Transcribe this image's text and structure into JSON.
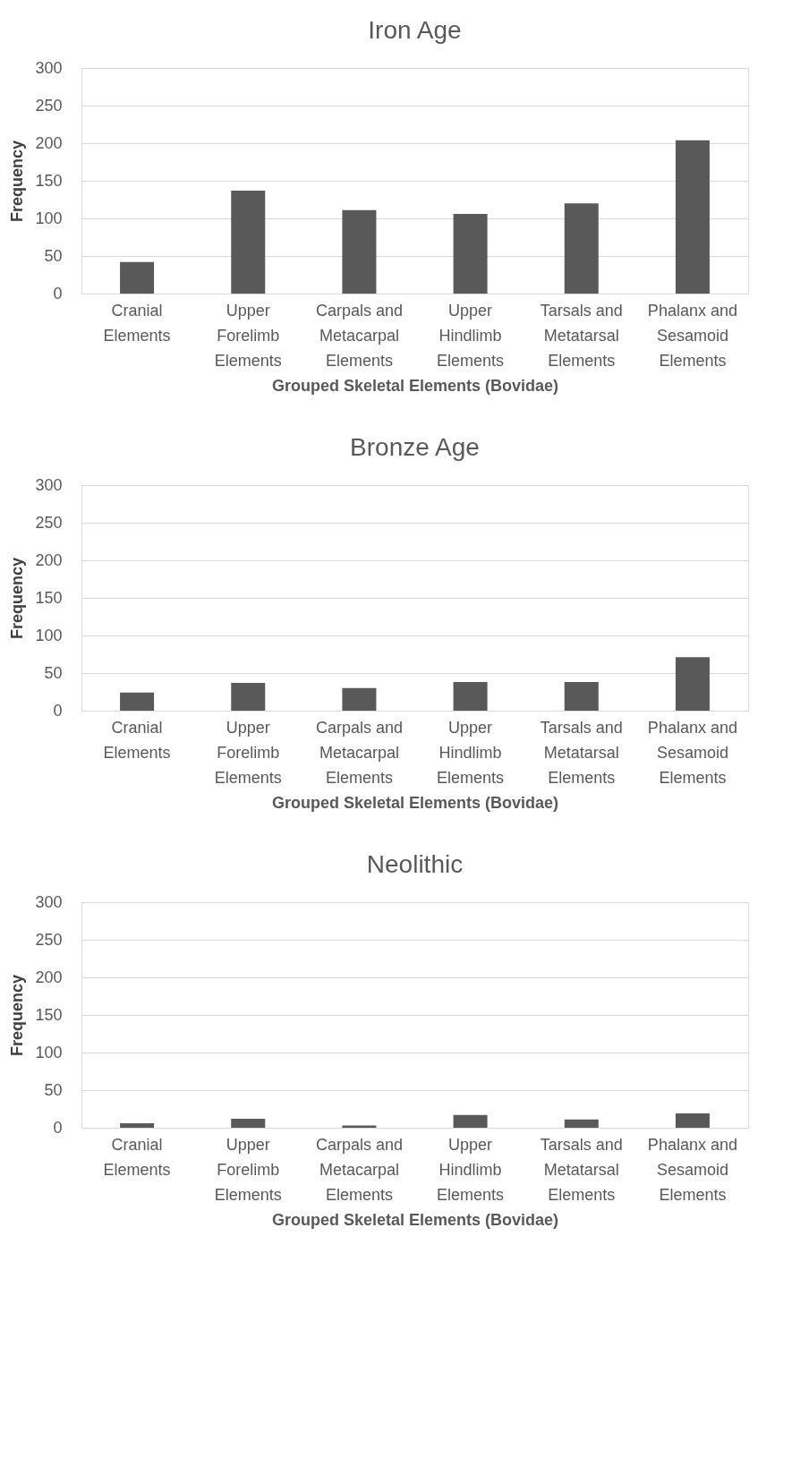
{
  "chart_data": [
    {
      "type": "bar",
      "title": "Iron Age",
      "xlabel": "Grouped Skeletal Elements (Bovidae)",
      "ylabel": "Frequency",
      "categories": [
        "Cranial Elements",
        "Upper Forelimb Elements",
        "Carpals and Metacarpal Elements",
        "Upper Hindlimb Elements",
        "Tarsals and Metatarsal Elements",
        "Phalanx  and Sesamoid Elements"
      ],
      "values": [
        42,
        137,
        111,
        106,
        120,
        204
      ],
      "color": "#595959",
      "ylim": [
        0,
        300
      ],
      "yticks": [
        0,
        50,
        100,
        150,
        200,
        250,
        300
      ],
      "grid": "y"
    },
    {
      "type": "bar",
      "title": "Bronze Age",
      "xlabel": "Grouped Skeletal Elements (Bovidae)",
      "ylabel": "Frequency",
      "categories": [
        "Cranial Elements",
        "Upper Forelimb Elements",
        "Carpals and Metacarpal Elements",
        "Upper Hindlimb Elements",
        "Tarsals and Metatarsal Elements",
        "Phalanx  and Sesamoid Elements"
      ],
      "values": [
        24,
        37,
        30,
        38,
        38,
        71
      ],
      "color": "#595959",
      "ylim": [
        0,
        300
      ],
      "yticks": [
        0,
        50,
        100,
        150,
        200,
        250,
        300
      ],
      "grid": "y"
    },
    {
      "type": "bar",
      "title": "Neolithic",
      "xlabel": "Grouped Skeletal Elements (Bovidae)",
      "ylabel": "Frequency",
      "categories": [
        "Cranial Elements",
        "Upper Forelimb Elements",
        "Carpals and Metacarpal Elements",
        "Upper Hindlimb Elements",
        "Tarsals and Metatarsal Elements",
        "Phalanx  and Sesamoid Elements"
      ],
      "values": [
        6,
        12,
        3,
        17,
        11,
        19
      ],
      "color": "#595959",
      "ylim": [
        0,
        300
      ],
      "yticks": [
        0,
        50,
        100,
        150,
        200,
        250,
        300
      ],
      "grid": "y"
    }
  ]
}
